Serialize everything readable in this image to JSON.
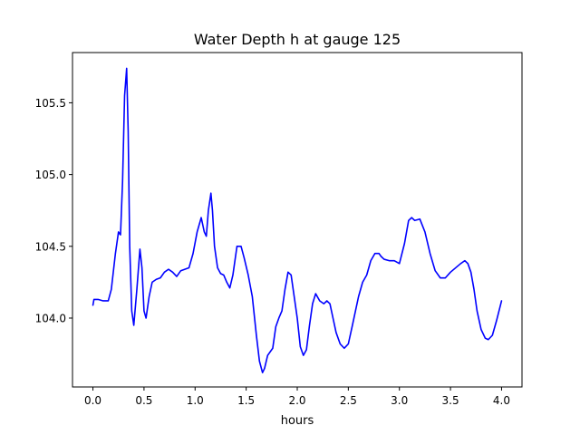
{
  "chart_data": {
    "type": "line",
    "title": "Water Depth h at gauge 125",
    "xlabel": "hours",
    "ylabel": "",
    "xlim": [
      -0.2,
      4.2
    ],
    "ylim": [
      103.52,
      105.85
    ],
    "xticks": [
      0.0,
      0.5,
      1.0,
      1.5,
      2.0,
      2.5,
      3.0,
      3.5,
      4.0
    ],
    "xtick_labels": [
      "0.0",
      "0.5",
      "1.0",
      "1.5",
      "2.0",
      "2.5",
      "3.0",
      "3.5",
      "4.0"
    ],
    "yticks": [
      104.0,
      104.5,
      105.0,
      105.5
    ],
    "ytick_labels": [
      "104.0",
      "104.5",
      "105.0",
      "105.5"
    ],
    "grid": false,
    "series": [
      {
        "color": "#0000ff",
        "x": [
          0.0,
          0.01,
          0.05,
          0.1,
          0.15,
          0.18,
          0.22,
          0.25,
          0.27,
          0.29,
          0.31,
          0.33,
          0.345,
          0.36,
          0.38,
          0.4,
          0.43,
          0.46,
          0.48,
          0.5,
          0.52,
          0.55,
          0.58,
          0.62,
          0.66,
          0.7,
          0.74,
          0.78,
          0.82,
          0.86,
          0.9,
          0.94,
          0.98,
          1.02,
          1.06,
          1.09,
          1.11,
          1.13,
          1.155,
          1.17,
          1.19,
          1.22,
          1.25,
          1.28,
          1.31,
          1.34,
          1.37,
          1.41,
          1.45,
          1.48,
          1.52,
          1.56,
          1.6,
          1.63,
          1.66,
          1.68,
          1.71,
          1.76,
          1.79,
          1.82,
          1.85,
          1.88,
          1.91,
          1.94,
          1.97,
          2.0,
          2.03,
          2.06,
          2.09,
          2.12,
          2.15,
          2.18,
          2.22,
          2.26,
          2.29,
          2.32,
          2.35,
          2.38,
          2.42,
          2.46,
          2.5,
          2.54,
          2.57,
          2.6,
          2.64,
          2.68,
          2.72,
          2.76,
          2.8,
          2.82,
          2.85,
          2.9,
          2.95,
          3.0,
          3.05,
          3.09,
          3.12,
          3.15,
          3.2,
          3.25,
          3.3,
          3.35,
          3.4,
          3.45,
          3.5,
          3.55,
          3.6,
          3.64,
          3.67,
          3.7,
          3.73,
          3.76,
          3.8,
          3.84,
          3.87,
          3.91,
          3.95,
          4.0
        ],
        "y": [
          104.09,
          104.13,
          104.13,
          104.12,
          104.12,
          104.2,
          104.45,
          104.6,
          104.58,
          104.95,
          105.55,
          105.74,
          105.3,
          104.5,
          104.05,
          103.95,
          104.2,
          104.48,
          104.35,
          104.05,
          104.0,
          104.15,
          104.25,
          104.27,
          104.28,
          104.32,
          104.34,
          104.32,
          104.29,
          104.33,
          104.34,
          104.35,
          104.45,
          104.6,
          104.7,
          104.6,
          104.57,
          104.75,
          104.87,
          104.75,
          104.5,
          104.35,
          104.31,
          104.3,
          104.25,
          104.21,
          104.3,
          104.5,
          104.5,
          104.42,
          104.3,
          104.15,
          103.88,
          103.7,
          103.62,
          103.65,
          103.74,
          103.79,
          103.94,
          104.0,
          104.05,
          104.2,
          104.32,
          104.3,
          104.15,
          104.0,
          103.8,
          103.74,
          103.78,
          103.95,
          104.1,
          104.17,
          104.12,
          104.1,
          104.12,
          104.1,
          104.0,
          103.9,
          103.82,
          103.79,
          103.82,
          103.95,
          104.05,
          104.15,
          104.25,
          104.3,
          104.4,
          104.45,
          104.45,
          104.43,
          104.41,
          104.4,
          104.4,
          104.38,
          104.52,
          104.68,
          104.7,
          104.68,
          104.69,
          104.6,
          104.45,
          104.33,
          104.28,
          104.28,
          104.32,
          104.35,
          104.38,
          104.4,
          104.38,
          104.32,
          104.2,
          104.05,
          103.92,
          103.86,
          103.85,
          103.88,
          103.98,
          104.12
        ]
      }
    ]
  }
}
